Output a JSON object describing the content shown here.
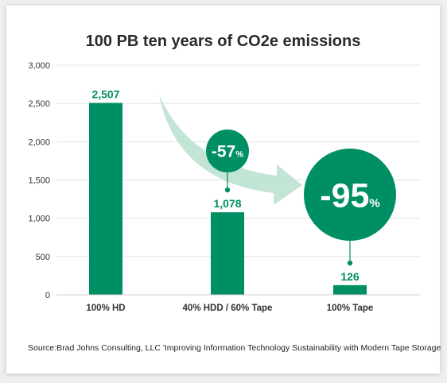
{
  "chart_data": {
    "type": "bar",
    "title": "100 PB ten years of CO2e emissions",
    "categories": [
      "100% HD",
      "40% HDD / 60% Tape",
      "100% Tape"
    ],
    "values": [
      2507,
      1078,
      126
    ],
    "data_labels": [
      "2,507",
      "1,078",
      "126"
    ],
    "ylim": [
      0,
      3000
    ],
    "yticks": [
      0,
      500,
      1000,
      1500,
      2000,
      2500,
      3000
    ],
    "ytick_labels": [
      "0",
      "500",
      "1,000",
      "1,500",
      "2,000",
      "2,500",
      "3,000"
    ],
    "grid": true,
    "bar_color": "#008f64",
    "annotations": [
      {
        "target": "40% HDD / 60% Tape",
        "value": "-57",
        "unit": "%"
      },
      {
        "target": "100% Tape",
        "value": "-95",
        "unit": "%"
      }
    ],
    "arrow_color": "#b8e0cf"
  },
  "source": "Source:Brad Johns Consulting, LLC 'Improving Information Technology Sustainability with Modern Tape Storage"
}
